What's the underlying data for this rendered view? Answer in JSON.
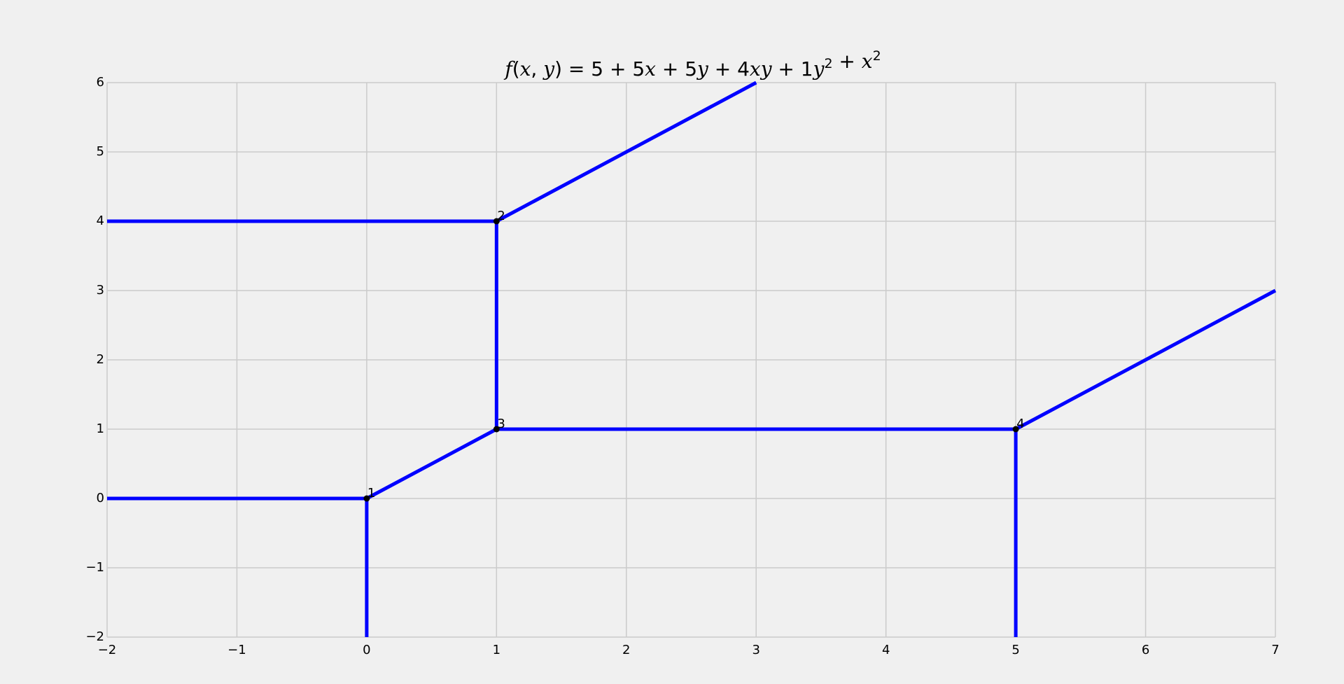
{
  "chart_data": {
    "type": "line",
    "title": "f(x, y) = 5 + 5x + 5y + 4xy + 1y² + x²",
    "title_parts": [
      {
        "t": "f",
        "style": "it"
      },
      {
        "t": "(",
        "style": ""
      },
      {
        "t": "x",
        "style": "it"
      },
      {
        "t": ", ",
        "style": ""
      },
      {
        "t": "y",
        "style": "it"
      },
      {
        "t": ") = 5 + 5",
        "style": ""
      },
      {
        "t": "x",
        "style": "it"
      },
      {
        "t": " + 5",
        "style": ""
      },
      {
        "t": "y",
        "style": "it"
      },
      {
        "t": " + 4",
        "style": ""
      },
      {
        "t": "xy",
        "style": "it"
      },
      {
        "t": " + 1",
        "style": ""
      },
      {
        "t": "y",
        "style": "it"
      },
      {
        "t": "2",
        "style": "sup"
      },
      {
        "t": " + ",
        "style": ""
      },
      {
        "t": "x",
        "style": "it"
      },
      {
        "t": "2",
        "style": "sup"
      }
    ],
    "xlabel": "",
    "ylabel": "",
    "xlim": [
      -2,
      7
    ],
    "ylim": [
      -2,
      6
    ],
    "xticks": [
      -2,
      -1,
      0,
      1,
      2,
      3,
      4,
      5,
      6,
      7
    ],
    "yticks": [
      -2,
      -1,
      0,
      1,
      2,
      3,
      4,
      5,
      6
    ],
    "grid": true,
    "line_color": "#0000ff",
    "point_color": "#000000",
    "series": [
      {
        "x": [
          -2,
          0
        ],
        "y": [
          0,
          0
        ]
      },
      {
        "x": [
          0,
          0
        ],
        "y": [
          0,
          -2
        ]
      },
      {
        "x": [
          0,
          1
        ],
        "y": [
          0,
          1
        ]
      },
      {
        "x": [
          1,
          1
        ],
        "y": [
          1,
          4
        ]
      },
      {
        "x": [
          -2,
          1
        ],
        "y": [
          4,
          4
        ]
      },
      {
        "x": [
          1,
          3
        ],
        "y": [
          4,
          6
        ]
      },
      {
        "x": [
          1,
          5
        ],
        "y": [
          1,
          1
        ]
      },
      {
        "x": [
          5,
          5
        ],
        "y": [
          1,
          -2
        ]
      },
      {
        "x": [
          5,
          7
        ],
        "y": [
          1,
          3
        ]
      }
    ],
    "points": [
      {
        "label": "1",
        "x": 0,
        "y": 0
      },
      {
        "label": "2",
        "x": 1,
        "y": 4
      },
      {
        "label": "3",
        "x": 1,
        "y": 1
      },
      {
        "label": "4",
        "x": 5,
        "y": 1
      }
    ]
  }
}
